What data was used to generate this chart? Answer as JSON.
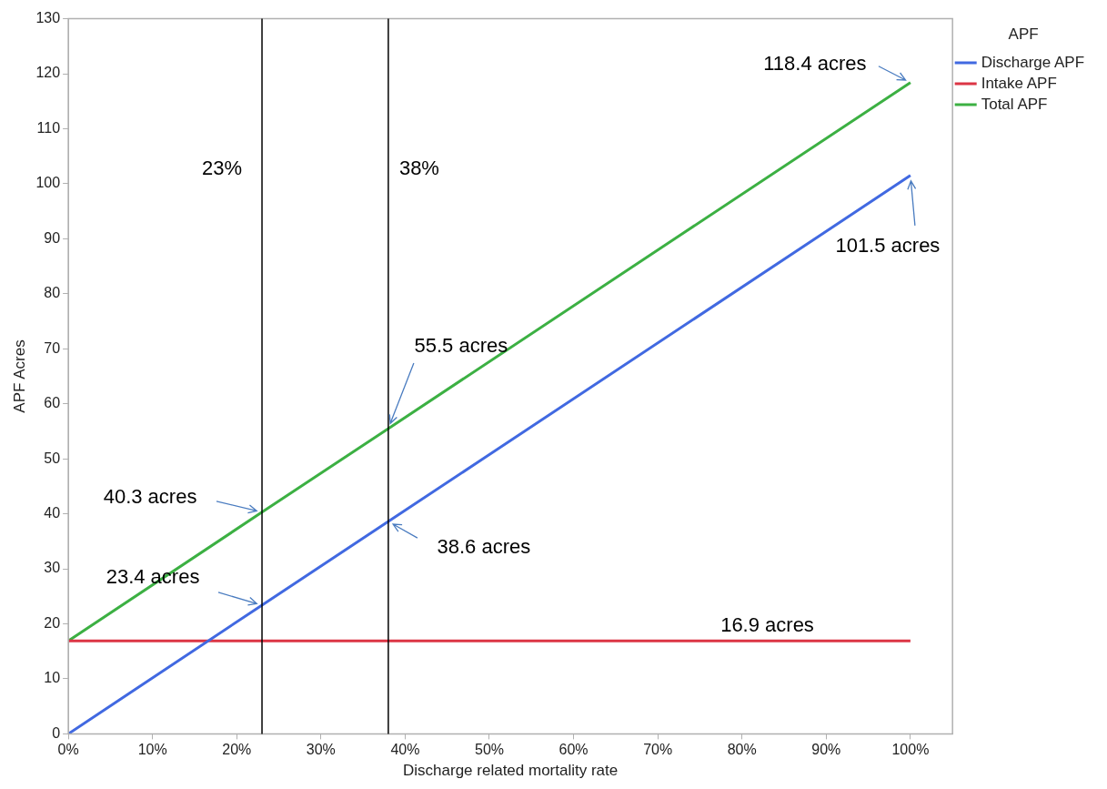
{
  "chart_data": {
    "type": "line",
    "xlabel": "Discharge related mortality rate",
    "ylabel": "APF Acres",
    "legend_title": "APF",
    "legend": "right",
    "xlim": [
      0,
      105
    ],
    "xticks": [
      {
        "value": 0,
        "label": "0%"
      },
      {
        "value": 10,
        "label": "10%"
      },
      {
        "value": 20,
        "label": "20%"
      },
      {
        "value": 30,
        "label": "30%"
      },
      {
        "value": 40,
        "label": "40%"
      },
      {
        "value": 50,
        "label": "50%"
      },
      {
        "value": 60,
        "label": "60%"
      },
      {
        "value": 70,
        "label": "70%"
      },
      {
        "value": 80,
        "label": "80%"
      },
      {
        "value": 90,
        "label": "90%"
      },
      {
        "value": 100,
        "label": "100%"
      }
    ],
    "ylim": [
      0,
      130
    ],
    "yticks": [
      0,
      10,
      20,
      30,
      40,
      50,
      60,
      70,
      80,
      90,
      100,
      110,
      120,
      130
    ],
    "grid": false,
    "marker": "none",
    "line_style": "solid",
    "series": [
      {
        "name": "Discharge APF",
        "color": "#4169e1",
        "x": [
          0,
          23,
          38,
          100
        ],
        "values": [
          0,
          23.4,
          38.6,
          101.5
        ]
      },
      {
        "name": "Intake APF",
        "color": "#dc3545",
        "x": [
          0,
          23,
          38,
          100
        ],
        "values": [
          16.9,
          16.9,
          16.9,
          16.9
        ]
      },
      {
        "name": "Total APF",
        "color": "#3cb043",
        "x": [
          0,
          23,
          38,
          100
        ],
        "values": [
          16.9,
          40.3,
          55.5,
          118.4
        ]
      }
    ],
    "ref_lines": [
      {
        "axis": "x",
        "value": 23,
        "label": "23%",
        "color": "#000000"
      },
      {
        "axis": "x",
        "value": 38,
        "label": "38%",
        "color": "#000000"
      }
    ],
    "annotations": [
      {
        "text": "118.4 acres",
        "x": 100,
        "y": 118.4
      },
      {
        "text": "101.5 acres",
        "x": 100,
        "y": 101.5
      },
      {
        "text": "55.5 acres",
        "x": 38,
        "y": 55.5
      },
      {
        "text": "40.3 acres",
        "x": 23,
        "y": 40.3
      },
      {
        "text": "38.6 acres",
        "x": 38,
        "y": 38.6
      },
      {
        "text": "23.4 acres",
        "x": 23,
        "y": 23.4
      },
      {
        "text": "16.9 acres",
        "x": 83,
        "y": 16.9
      }
    ]
  }
}
